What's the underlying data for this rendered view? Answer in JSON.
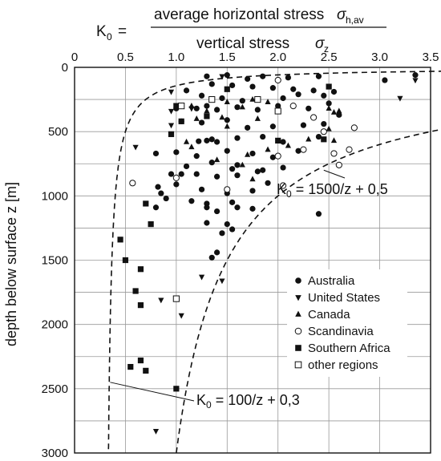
{
  "formula": {
    "lhs": "K",
    "lhs_sub": "0",
    "equals": "=",
    "num_text": "average horizontal stress",
    "num_sym": "σ",
    "num_sub": "h,av",
    "den_text": "vertical stress",
    "den_sym": "σ",
    "den_sub": "z"
  },
  "chart_data": {
    "type": "scatter",
    "title": "",
    "xlabel": "",
    "ylabel": "depth below surface  z  [m]",
    "xlim": [
      0,
      3.5
    ],
    "ylim": [
      0,
      3000
    ],
    "y_inverted": true,
    "x_axis_position": "top",
    "grid": true,
    "x_ticks": [
      "0",
      "0.5",
      "1.0",
      "1.5",
      "2.0",
      "2.5",
      "3.0",
      "3.5"
    ],
    "y_ticks": [
      "0",
      "500",
      "1000",
      "1500",
      "2000",
      "2500",
      "3000"
    ],
    "legend_position": "bottom-right",
    "legend": [
      {
        "label": "Australia",
        "marker": "circle-filled"
      },
      {
        "label": "United States",
        "marker": "triangle-down"
      },
      {
        "label": "Canada",
        "marker": "triangle-up"
      },
      {
        "label": "Scandinavia",
        "marker": "circle-open"
      },
      {
        "label": "Southern Africa",
        "marker": "square-filled"
      },
      {
        "label": "other regions",
        "marker": "square-open"
      }
    ],
    "curves": [
      {
        "label_prefix": "K",
        "label_sub": "0",
        "label_rest": " = 100/z + 0,3",
        "a": 100,
        "b": 0.3
      },
      {
        "label_prefix": "K",
        "label_sub": "0",
        "label_rest": " = 1500/z + 0,5",
        "a": 1500,
        "b": 0.5
      }
    ],
    "series": [
      {
        "name": "Australia",
        "marker": "circle-filled",
        "points": [
          [
            1.3,
            70
          ],
          [
            1.5,
            60
          ],
          [
            1.7,
            90
          ],
          [
            1.85,
            70
          ],
          [
            2.1,
            80
          ],
          [
            2.4,
            70
          ],
          [
            3.35,
            60
          ],
          [
            3.05,
            100
          ],
          [
            1.35,
            130
          ],
          [
            1.55,
            140
          ],
          [
            1.75,
            150
          ],
          [
            1.95,
            160
          ],
          [
            2.15,
            170
          ],
          [
            2.35,
            180
          ],
          [
            2.55,
            190
          ],
          [
            1.1,
            180
          ],
          [
            1.25,
            220
          ],
          [
            1.45,
            240
          ],
          [
            1.65,
            260
          ],
          [
            2.05,
            240
          ],
          [
            2.2,
            210
          ],
          [
            2.45,
            220
          ],
          [
            1.0,
            320
          ],
          [
            1.2,
            320
          ],
          [
            1.3,
            300
          ],
          [
            1.4,
            330
          ],
          [
            1.6,
            310
          ],
          [
            1.8,
            330
          ],
          [
            2.0,
            300
          ],
          [
            2.3,
            320
          ],
          [
            2.5,
            280
          ],
          [
            2.6,
            370
          ],
          [
            1.05,
            420
          ],
          [
            1.25,
            430
          ],
          [
            1.5,
            410
          ],
          [
            1.7,
            470
          ],
          [
            1.95,
            460
          ],
          [
            2.25,
            450
          ],
          [
            2.45,
            440
          ],
          [
            1.3,
            570
          ],
          [
            1.35,
            560
          ],
          [
            1.4,
            580
          ],
          [
            1.6,
            550
          ],
          [
            1.85,
            540
          ],
          [
            2.05,
            580
          ],
          [
            2.4,
            540
          ],
          [
            1.22,
            575
          ],
          [
            0.8,
            670
          ],
          [
            1.0,
            660
          ],
          [
            1.2,
            690
          ],
          [
            1.5,
            650
          ],
          [
            1.75,
            670
          ],
          [
            2.2,
            650
          ],
          [
            1.95,
            700
          ],
          [
            1.1,
            770
          ],
          [
            1.35,
            740
          ],
          [
            1.6,
            760
          ],
          [
            1.85,
            800
          ],
          [
            2.05,
            780
          ],
          [
            1.55,
            790
          ],
          [
            0.95,
            830
          ],
          [
            1.05,
            830
          ],
          [
            1.2,
            830
          ],
          [
            1.4,
            850
          ],
          [
            1.6,
            840
          ],
          [
            1.8,
            810
          ],
          [
            0.82,
            930
          ],
          [
            1.0,
            910
          ],
          [
            1.25,
            950
          ],
          [
            1.5,
            980
          ],
          [
            1.75,
            960
          ],
          [
            1.9,
            900
          ],
          [
            0.85,
            980
          ],
          [
            0.9,
            1020
          ],
          [
            1.15,
            1040
          ],
          [
            1.3,
            1060
          ],
          [
            1.55,
            1050
          ],
          [
            0.8,
            1090
          ],
          [
            1.3,
            1090
          ],
          [
            1.4,
            1120
          ],
          [
            1.6,
            1090
          ],
          [
            1.75,
            1100
          ],
          [
            2.4,
            1140
          ],
          [
            1.3,
            1210
          ],
          [
            1.5,
            1220
          ],
          [
            1.45,
            1290
          ],
          [
            1.55,
            1260
          ],
          [
            1.4,
            1440
          ],
          [
            1.35,
            1480
          ]
        ]
      },
      {
        "name": "United States",
        "marker": "triangle-down",
        "points": [
          [
            3.35,
            100
          ],
          [
            3.2,
            240
          ],
          [
            0.95,
            190
          ],
          [
            1.45,
            70
          ],
          [
            1.0,
            300
          ],
          [
            0.95,
            340
          ],
          [
            1.15,
            320
          ],
          [
            0.6,
            620
          ],
          [
            0.95,
            450
          ],
          [
            1.25,
            1630
          ],
          [
            1.45,
            1660
          ],
          [
            0.85,
            1810
          ],
          [
            1.05,
            1930
          ],
          [
            0.8,
            2830
          ]
        ]
      },
      {
        "name": "Canada",
        "marker": "triangle-up",
        "points": [
          [
            1.15,
            300
          ],
          [
            1.5,
            270
          ],
          [
            1.65,
            310
          ],
          [
            1.75,
            250
          ],
          [
            1.9,
            270
          ],
          [
            2.5,
            320
          ],
          [
            2.55,
            350
          ],
          [
            2.6,
            340
          ],
          [
            1.3,
            340
          ],
          [
            1.8,
            400
          ],
          [
            1.5,
            460
          ],
          [
            2.5,
            480
          ],
          [
            2.3,
            560
          ],
          [
            1.1,
            580
          ],
          [
            1.15,
            620
          ],
          [
            2.55,
            570
          ],
          [
            1.9,
            640
          ],
          [
            2.1,
            610
          ],
          [
            1.7,
            680
          ],
          [
            1.4,
            720
          ],
          [
            1.65,
            760
          ],
          [
            1.75,
            870
          ],
          [
            1.2,
            400
          ],
          [
            1.45,
            390
          ]
        ]
      },
      {
        "name": "Scandinavia",
        "marker": "circle-open",
        "points": [
          [
            2.0,
            100
          ],
          [
            2.15,
            300
          ],
          [
            2.35,
            390
          ],
          [
            2.45,
            500
          ],
          [
            2.75,
            470
          ],
          [
            2.25,
            640
          ],
          [
            2.55,
            670
          ],
          [
            2.7,
            640
          ],
          [
            2.0,
            690
          ],
          [
            2.6,
            760
          ],
          [
            0.57,
            900
          ],
          [
            1.0,
            860
          ],
          [
            1.5,
            950
          ],
          [
            2.05,
            920
          ]
        ]
      },
      {
        "name": "Southern Africa",
        "marker": "square-filled",
        "points": [
          [
            1.5,
            170
          ],
          [
            1.0,
            300
          ],
          [
            1.3,
            380
          ],
          [
            1.05,
            420
          ],
          [
            2.5,
            150
          ],
          [
            0.95,
            520
          ],
          [
            2.0,
            570
          ],
          [
            2.45,
            560
          ],
          [
            0.75,
            1220
          ],
          [
            0.7,
            1060
          ],
          [
            0.45,
            1340
          ],
          [
            0.5,
            1500
          ],
          [
            0.65,
            1570
          ],
          [
            0.6,
            1740
          ],
          [
            0.65,
            1850
          ],
          [
            0.65,
            2280
          ],
          [
            0.55,
            2330
          ],
          [
            0.7,
            2360
          ],
          [
            1.0,
            2500
          ]
        ]
      },
      {
        "name": "other regions",
        "marker": "square-open",
        "points": [
          [
            1.35,
            250
          ],
          [
            1.05,
            300
          ],
          [
            1.8,
            250
          ],
          [
            2.0,
            340
          ],
          [
            1.0,
            1800
          ]
        ]
      }
    ]
  }
}
